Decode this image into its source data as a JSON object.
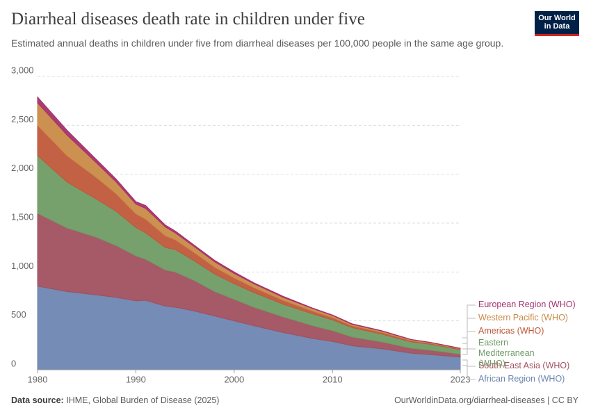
{
  "chart_data": {
    "type": "stacked_area",
    "title": "Diarrheal diseases death rate in children under five",
    "subtitle": "Estimated annual deaths in children under five from diarrheal diseases per 100,000 people in the same age group.",
    "logo": "Our World in Data",
    "source_label": "Data source:",
    "source": "IHME, Global Burden of Disease (2025)",
    "url": "OurWorldinData.org/diarrheal-diseases | CC BY",
    "x": [
      1980,
      1983,
      1986,
      1988,
      1990,
      1991,
      1993,
      1994,
      1996,
      1998,
      2000,
      2002,
      2005,
      2008,
      2010,
      2012,
      2015,
      2018,
      2020,
      2023
    ],
    "series": [
      {
        "name": "African Region (WHO)",
        "color": "#6d86b2",
        "values": [
          855,
          800,
          765,
          740,
          705,
          710,
          650,
          640,
          600,
          550,
          500,
          450,
          380,
          320,
          290,
          245,
          215,
          170,
          155,
          130
        ]
      },
      {
        "name": "South-East Asia (WHO)",
        "color": "#a1505e",
        "values": [
          745,
          650,
          590,
          530,
          460,
          420,
          370,
          360,
          310,
          250,
          220,
          190,
          160,
          130,
          110,
          90,
          70,
          50,
          45,
          30
        ]
      },
      {
        "name": "Eastern Mediterranean (WHO)",
        "color": "#6f9c64",
        "values": [
          590,
          470,
          390,
          350,
          290,
          270,
          230,
          230,
          200,
          180,
          160,
          150,
          130,
          120,
          110,
          95,
          80,
          65,
          60,
          45
        ]
      },
      {
        "name": "Americas (WHO)",
        "color": "#c0583a",
        "values": [
          310,
          270,
          220,
          180,
          140,
          140,
          120,
          100,
          85,
          70,
          60,
          50,
          40,
          30,
          25,
          20,
          18,
          12,
          10,
          8
        ]
      },
      {
        "name": "Western Pacific (WHO)",
        "color": "#c98a48",
        "values": [
          230,
          210,
          150,
          120,
          100,
          110,
          90,
          70,
          60,
          55,
          45,
          40,
          30,
          25,
          20,
          15,
          13,
          10,
          8,
          5
        ]
      },
      {
        "name": "European Region (WHO)",
        "color": "#a5306c",
        "values": [
          60,
          50,
          35,
          30,
          25,
          30,
          20,
          20,
          15,
          15,
          15,
          10,
          10,
          5,
          5,
          5,
          4,
          3,
          2,
          2
        ]
      }
    ],
    "xlim": [
      1980,
      2023
    ],
    "xticks": [
      1980,
      1990,
      2000,
      2010,
      2023
    ],
    "ylim": [
      0,
      3000
    ],
    "yticks": [
      0,
      500,
      {
        "value": 1000,
        "label": "1,000"
      },
      {
        "value": 1500,
        "label": "1,500"
      },
      {
        "value": 2000,
        "label": "2,000"
      },
      {
        "value": 2500,
        "label": "2,500"
      },
      {
        "value": 3000,
        "label": "3,000"
      }
    ],
    "grid": true
  }
}
